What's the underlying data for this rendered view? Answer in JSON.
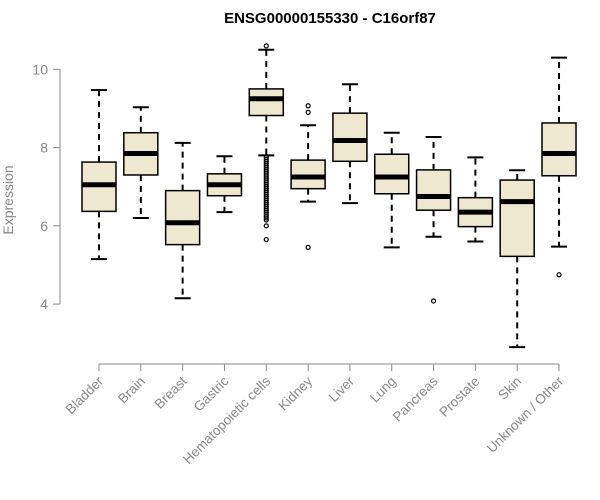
{
  "chart_data": {
    "type": "box",
    "title": "ENSG00000155330 - C16orf87",
    "xlabel": "",
    "ylabel": "Expression",
    "ylim": [
      2.75,
      10.75
    ],
    "yticks": [
      4,
      6,
      8,
      10
    ],
    "grid": false,
    "box_fill": "#efe8d0",
    "categories": [
      "Bladder",
      "Brain",
      "Breast",
      "Gastric",
      "Hematopoietic cells",
      "Kidney",
      "Liver",
      "Lung",
      "Pancreas",
      "Prostate",
      "Skin",
      "Unknown / Other"
    ],
    "boxes": [
      {
        "min": 5.15,
        "q1": 6.37,
        "median": 7.05,
        "q3": 7.63,
        "max": 9.47,
        "outliers": []
      },
      {
        "min": 6.2,
        "q1": 7.3,
        "median": 7.85,
        "q3": 8.38,
        "max": 9.03,
        "outliers": []
      },
      {
        "min": 4.15,
        "q1": 5.52,
        "median": 6.08,
        "q3": 6.9,
        "max": 8.12,
        "outliers": []
      },
      {
        "min": 6.35,
        "q1": 6.77,
        "median": 7.05,
        "q3": 7.33,
        "max": 7.78,
        "outliers": []
      },
      {
        "min": 7.8,
        "q1": 8.82,
        "median": 9.25,
        "q3": 9.5,
        "max": 10.5,
        "outliers": [
          10.6,
          7.75,
          7.7,
          7.65,
          7.6,
          7.55,
          7.5,
          7.45,
          7.4,
          7.35,
          7.3,
          7.25,
          7.2,
          7.15,
          7.1,
          7.05,
          7.0,
          6.95,
          6.9,
          6.85,
          6.8,
          6.75,
          6.7,
          6.65,
          6.6,
          6.55,
          6.5,
          6.45,
          6.4,
          6.35,
          6.3,
          6.25,
          6.2,
          6.15,
          6.0,
          5.65
        ]
      },
      {
        "min": 6.62,
        "q1": 6.95,
        "median": 7.25,
        "q3": 7.68,
        "max": 8.57,
        "outliers": [
          9.07,
          8.9,
          5.45
        ]
      },
      {
        "min": 6.58,
        "q1": 7.65,
        "median": 8.18,
        "q3": 8.88,
        "max": 9.62,
        "outliers": []
      },
      {
        "min": 5.45,
        "q1": 6.82,
        "median": 7.25,
        "q3": 7.83,
        "max": 8.38,
        "outliers": []
      },
      {
        "min": 5.72,
        "q1": 6.4,
        "median": 6.75,
        "q3": 7.43,
        "max": 8.27,
        "outliers": [
          4.08
        ]
      },
      {
        "min": 5.6,
        "q1": 5.98,
        "median": 6.35,
        "q3": 6.72,
        "max": 7.75,
        "outliers": []
      },
      {
        "min": 2.9,
        "q1": 5.22,
        "median": 6.62,
        "q3": 7.17,
        "max": 7.42,
        "outliers": []
      },
      {
        "min": 5.47,
        "q1": 7.28,
        "median": 7.85,
        "q3": 8.63,
        "max": 10.3,
        "outliers": [
          4.75
        ]
      }
    ]
  }
}
